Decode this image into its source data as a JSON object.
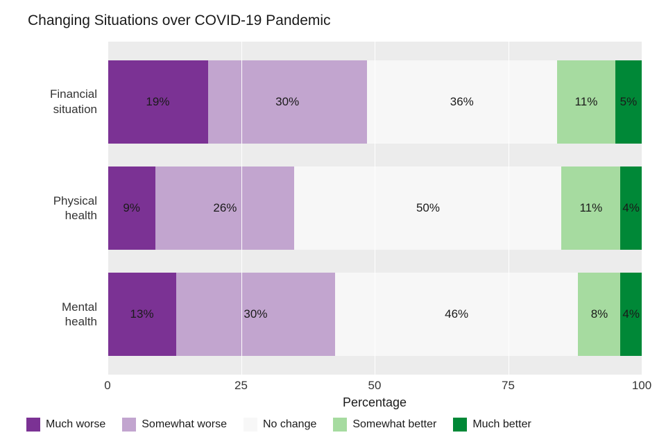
{
  "chart": {
    "type": "stacked-bar-horizontal",
    "title": "Changing Situations over COVID-19 Pandemic",
    "title_fontsize": 21,
    "background_color": "#ffffff",
    "panel_color": "#ececec",
    "grid_color": "#ffffff",
    "xlabel": "Percentage",
    "xlabel_fontsize": 18,
    "xlim": [
      0,
      100
    ],
    "xticks": [
      0,
      25,
      50,
      75,
      100
    ],
    "tick_fontsize": 17,
    "bar_label_fontsize": 17,
    "bar_label_color": "#1a1a1a",
    "categories": [
      {
        "key": "financial",
        "label": "Financial\nsituation"
      },
      {
        "key": "physical",
        "label": "Physical\nhealth"
      },
      {
        "key": "mental",
        "label": "Mental\nhealth"
      }
    ],
    "series": [
      {
        "key": "much_worse",
        "label": "Much worse",
        "color": "#7b3294"
      },
      {
        "key": "somewhat_worse",
        "label": "Somewhat worse",
        "color": "#c2a5cf"
      },
      {
        "key": "no_change",
        "label": "No change",
        "color": "#f7f7f7"
      },
      {
        "key": "somewhat_better",
        "label": "Somewhat better",
        "color": "#a6dba0"
      },
      {
        "key": "much_better",
        "label": "Much better",
        "color": "#008837"
      }
    ],
    "rows": [
      {
        "category": "financial",
        "values": [
          19,
          30,
          36,
          11,
          5
        ],
        "labels": [
          "19%",
          "30%",
          "36%",
          "11%",
          "5%"
        ],
        "total_pct": 101
      },
      {
        "category": "physical",
        "values": [
          9,
          26,
          50,
          11,
          4
        ],
        "labels": [
          "9%",
          "26%",
          "50%",
          "11%",
          "4%"
        ],
        "total_pct": 100
      },
      {
        "category": "mental",
        "values": [
          13,
          30,
          46,
          8,
          4
        ],
        "labels": [
          "13%",
          "30%",
          "46%",
          "8%",
          "4%"
        ],
        "total_pct": 101
      }
    ],
    "legend_position": "bottom",
    "legend_fontsize": 16
  }
}
